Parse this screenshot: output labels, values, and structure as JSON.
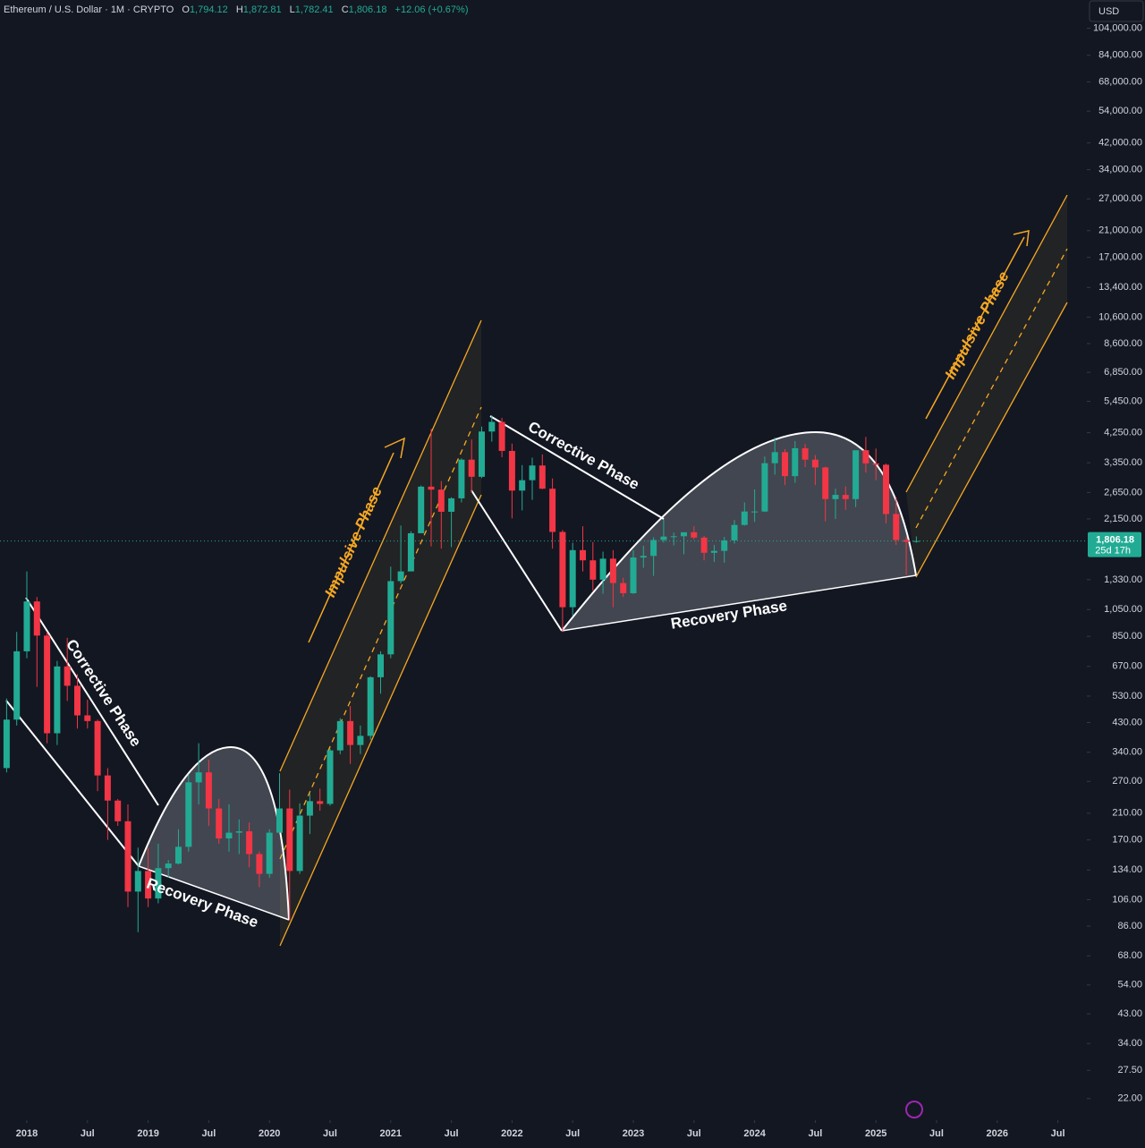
{
  "chart_data": {
    "type": "candlestick",
    "header": {
      "title": "Ethereum / U.S. Dollar · 1M · CRYPTO",
      "o_label": "O",
      "o": "1,794.12",
      "h_label": "H",
      "h": "1,872.81",
      "l_label": "L",
      "l": "1,782.41",
      "c_label": "C",
      "c": "1,806.18",
      "change": "+12.06 (+0.67%)"
    },
    "currency": "USD",
    "last_price_label": "1,806.18",
    "countdown": "25d 17h",
    "annotations": {
      "corrective_1": "Corrective Phase",
      "recovery_1": "Recovery Phase",
      "impulsive_1": "Impulsive Phase",
      "corrective_2": "Corrective Phase",
      "recovery_2": "Recovery Phase",
      "impulsive_2": "Impulsive Phase"
    },
    "up_color": "#22ab94",
    "down_color": "#f23645",
    "log_scale": true,
    "x": [
      "2017-11",
      "2017-12",
      "2018-01",
      "2018-02",
      "2018-03",
      "2018-04",
      "2018-05",
      "2018-06",
      "2018-07",
      "2018-08",
      "2018-09",
      "2018-10",
      "2018-11",
      "2018-12",
      "2019-01",
      "2019-02",
      "2019-03",
      "2019-04",
      "2019-05",
      "2019-06",
      "2019-07",
      "2019-08",
      "2019-09",
      "2019-10",
      "2019-11",
      "2019-12",
      "2020-01",
      "2020-02",
      "2020-03",
      "2020-04",
      "2020-05",
      "2020-06",
      "2020-07",
      "2020-08",
      "2020-09",
      "2020-10",
      "2020-11",
      "2020-12",
      "2021-01",
      "2021-02",
      "2021-03",
      "2021-04",
      "2021-05",
      "2021-06",
      "2021-07",
      "2021-08",
      "2021-09",
      "2021-10",
      "2021-11",
      "2021-12",
      "2022-01",
      "2022-02",
      "2022-03",
      "2022-04",
      "2022-05",
      "2022-06",
      "2022-07",
      "2022-08",
      "2022-09",
      "2022-10",
      "2022-11",
      "2022-12",
      "2023-01",
      "2023-02",
      "2023-03",
      "2023-04",
      "2023-05",
      "2023-06",
      "2023-07",
      "2023-08",
      "2023-09",
      "2023-10",
      "2023-11",
      "2023-12",
      "2024-01",
      "2024-02",
      "2024-03",
      "2024-04",
      "2024-05",
      "2024-06",
      "2024-07",
      "2024-08",
      "2024-09",
      "2024-10",
      "2024-11",
      "2024-12",
      "2025-01",
      "2025-02",
      "2025-03",
      "2025-04",
      "2025-05"
    ],
    "ohlc": {
      "open": [
        300,
        440,
        755,
        1120,
        855,
        395,
        670,
        575,
        455,
        435,
        283,
        232,
        197,
        113,
        133,
        107,
        136,
        141,
        161,
        268,
        290,
        218,
        172,
        180,
        182,
        152,
        130,
        180,
        218,
        133,
        206,
        231,
        226,
        345,
        435,
        360,
        387,
        615,
        737,
        1315,
        1420,
        1920,
        2775,
        2710,
        2275,
        2530,
        3435,
        3000,
        4290,
        4630,
        3680,
        2690,
        2920,
        3280,
        2730,
        1940,
        1070,
        1680,
        1550,
        1330,
        1570,
        1295,
        1195,
        1585,
        1605,
        1820,
        1870,
        1875,
        1935,
        1855,
        1645,
        1670,
        1815,
        2050,
        2280,
        2280,
        3340,
        3645,
        3015,
        3760,
        3435,
        3230,
        2515,
        2600,
        2515,
        3700,
        3335,
        3300,
        2235,
        1820,
        1794.12
      ],
      "high": [
        520,
        880,
        1420,
        1160,
        880,
        700,
        840,
        630,
        515,
        440,
        300,
        235,
        225,
        160,
        160,
        165,
        145,
        185,
        285,
        365,
        320,
        235,
        225,
        200,
        195,
        155,
        185,
        288,
        253,
        227,
        245,
        255,
        350,
        445,
        490,
        420,
        620,
        755,
        1475,
        2040,
        1950,
        2800,
        4380,
        2900,
        2550,
        3470,
        4030,
        4460,
        4870,
        4780,
        3900,
        3290,
        3490,
        3580,
        2960,
        1970,
        1780,
        2030,
        1790,
        1660,
        1680,
        1350,
        1680,
        1740,
        1860,
        2140,
        1930,
        1930,
        2030,
        1880,
        1750,
        1865,
        2130,
        2450,
        2715,
        3520,
        4090,
        3730,
        3980,
        3890,
        3560,
        3250,
        2730,
        2780,
        3690,
        4110,
        3750,
        3330,
        2550,
        1870,
        1872.81
      ],
      "low": [
        290,
        420,
        715,
        570,
        365,
        360,
        510,
        410,
        410,
        250,
        170,
        190,
        100,
        82,
        100,
        103,
        126,
        140,
        155,
        225,
        190,
        165,
        155,
        152,
        137,
        117,
        126,
        180,
        90,
        130,
        178,
        214,
        223,
        335,
        310,
        335,
        375,
        540,
        715,
        1290,
        1430,
        1920,
        1730,
        1700,
        1720,
        2450,
        2650,
        2970,
        3960,
        3500,
        2160,
        2300,
        2500,
        2720,
        1700,
        880,
        1000,
        1420,
        1220,
        1190,
        1070,
        1160,
        1190,
        1460,
        1370,
        1785,
        1745,
        1625,
        1830,
        1550,
        1530,
        1520,
        1770,
        2040,
        2100,
        2270,
        3050,
        2810,
        2860,
        3240,
        2810,
        2110,
        2150,
        2310,
        2360,
        3100,
        2920,
        2075,
        1750,
        1380,
        1782.41
      ],
      "close": [
        440,
        755,
        1120,
        855,
        395,
        670,
        575,
        455,
        435,
        283,
        232,
        197,
        113,
        133,
        107,
        136,
        141,
        161,
        268,
        290,
        218,
        172,
        180,
        182,
        152,
        130,
        180,
        218,
        133,
        206,
        231,
        226,
        345,
        435,
        360,
        387,
        615,
        737,
        1315,
        1420,
        1920,
        2775,
        2710,
        2275,
        2530,
        3435,
        3000,
        4290,
        4630,
        3680,
        2690,
        2920,
        3280,
        2730,
        1940,
        1070,
        1680,
        1550,
        1330,
        1570,
        1295,
        1195,
        1585,
        1605,
        1820,
        1870,
        1875,
        1935,
        1855,
        1645,
        1670,
        1815,
        2050,
        2280,
        2280,
        3340,
        3645,
        3015,
        3760,
        3435,
        3230,
        2515,
        2600,
        2515,
        3700,
        3335,
        3300,
        2235,
        1820,
        1794,
        1806.18
      ]
    },
    "ylim": [
      18.8,
      130000
    ],
    "yticks": [
      {
        "value": 104000,
        "label": "104,000.00"
      },
      {
        "value": 84000,
        "label": "84,000.00"
      },
      {
        "value": 68000,
        "label": "68,000.00"
      },
      {
        "value": 54000,
        "label": "54,000.00"
      },
      {
        "value": 42000,
        "label": "42,000.00"
      },
      {
        "value": 34000,
        "label": "34,000.00"
      },
      {
        "value": 27000,
        "label": "27,000.00"
      },
      {
        "value": 21000,
        "label": "21,000.00"
      },
      {
        "value": 17000,
        "label": "17,000.00"
      },
      {
        "value": 13400,
        "label": "13,400.00"
      },
      {
        "value": 10600,
        "label": "10,600.00"
      },
      {
        "value": 8600,
        "label": "8,600.00"
      },
      {
        "value": 6850,
        "label": "6,850.00"
      },
      {
        "value": 5450,
        "label": "5,450.00"
      },
      {
        "value": 4250,
        "label": "4,250.00"
      },
      {
        "value": 3350,
        "label": "3,350.00"
      },
      {
        "value": 2650,
        "label": "2,650.00"
      },
      {
        "value": 2150,
        "label": "2,150.00"
      },
      {
        "value": 1330,
        "label": "1,330.00"
      },
      {
        "value": 1050,
        "label": "1,050.00"
      },
      {
        "value": 850,
        "label": "850.00"
      },
      {
        "value": 670,
        "label": "670.00"
      },
      {
        "value": 530,
        "label": "530.00"
      },
      {
        "value": 430,
        "label": "430.00"
      },
      {
        "value": 340,
        "label": "340.00"
      },
      {
        "value": 270,
        "label": "270.00"
      },
      {
        "value": 210,
        "label": "210.00"
      },
      {
        "value": 170,
        "label": "170.00"
      },
      {
        "value": 134,
        "label": "134.00"
      },
      {
        "value": 106,
        "label": "106.00"
      },
      {
        "value": 86,
        "label": "86.00"
      },
      {
        "value": 68,
        "label": "68.00"
      },
      {
        "value": 54,
        "label": "54.00"
      },
      {
        "value": 43,
        "label": "43.00"
      },
      {
        "value": 34,
        "label": "34.00"
      },
      {
        "value": 27.5,
        "label": "27.50"
      },
      {
        "value": 22,
        "label": "22.00"
      }
    ],
    "xticks": [
      {
        "value": "2018-01",
        "label": "2018"
      },
      {
        "value": "2018-07",
        "label": "Jul"
      },
      {
        "value": "2019-01",
        "label": "2019"
      },
      {
        "value": "2019-07",
        "label": "Jul"
      },
      {
        "value": "2020-01",
        "label": "2020"
      },
      {
        "value": "2020-07",
        "label": "Jul"
      },
      {
        "value": "2021-01",
        "label": "2021"
      },
      {
        "value": "2021-07",
        "label": "Jul"
      },
      {
        "value": "2022-01",
        "label": "2022"
      },
      {
        "value": "2022-07",
        "label": "Jul"
      },
      {
        "value": "2023-01",
        "label": "2023"
      },
      {
        "value": "2023-07",
        "label": "Jul"
      },
      {
        "value": "2024-01",
        "label": "2024"
      },
      {
        "value": "2024-07",
        "label": "Jul"
      },
      {
        "value": "2025-01",
        "label": "2025"
      },
      {
        "value": "2025-07",
        "label": "Jul"
      },
      {
        "value": "2026-01",
        "label": "2026"
      },
      {
        "value": "2026-07",
        "label": "Jul"
      }
    ]
  }
}
